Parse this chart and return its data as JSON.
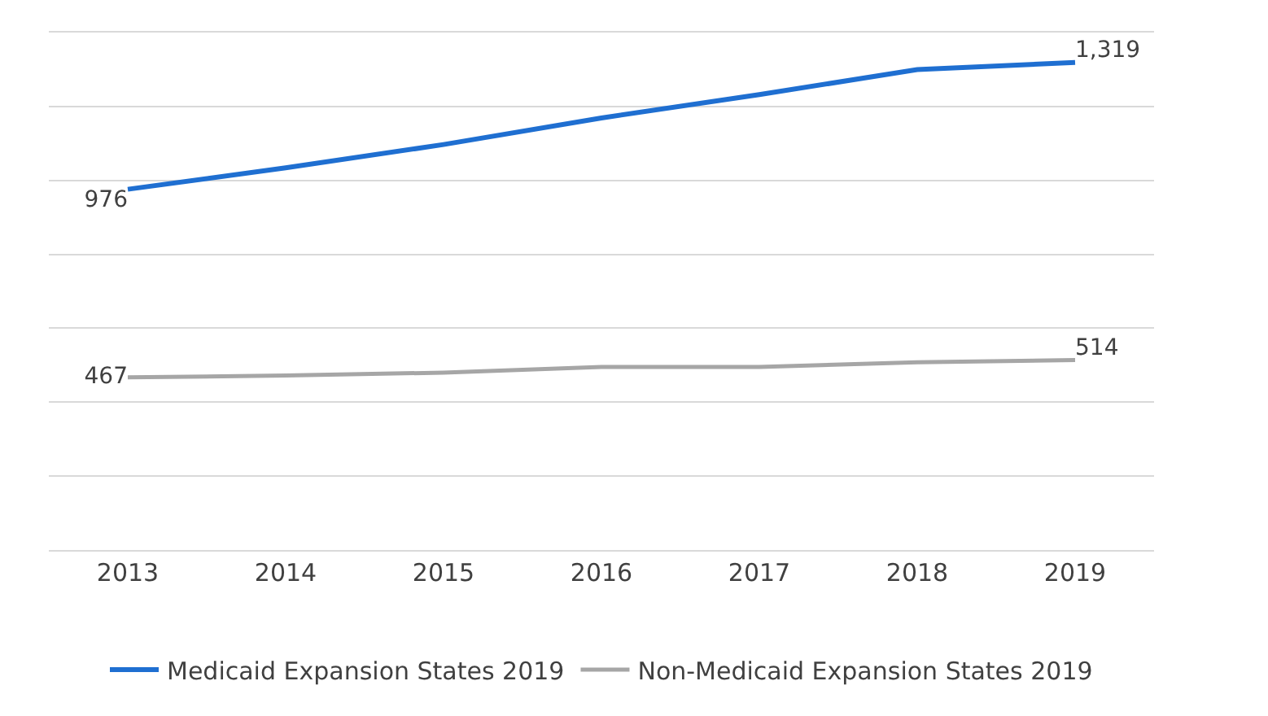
{
  "chart_data": {
    "type": "line",
    "categories": [
      "2013",
      "2014",
      "2015",
      "2016",
      "2017",
      "2018",
      "2019"
    ],
    "series": [
      {
        "name": "Medicaid Expansion States 2019",
        "color": "#1f6fd1",
        "values": [
          976,
          1034,
          1097,
          1169,
          1232,
          1300,
          1319
        ],
        "value_labels": [
          "976",
          null,
          null,
          null,
          null,
          null,
          "1,319"
        ]
      },
      {
        "name": "Non-Medicaid Expansion States 2019",
        "color": "#a6a6a6",
        "values": [
          467,
          472,
          480,
          495,
          495,
          508,
          514
        ],
        "value_labels": [
          "467",
          null,
          null,
          null,
          null,
          null,
          "514"
        ]
      }
    ],
    "ylim": [
      0,
      1400
    ],
    "yticks": [
      {
        "value": 0,
        "label": null
      },
      {
        "value": 200,
        "label": null
      },
      {
        "value": 400,
        "label": null
      },
      {
        "value": 600,
        "label": null
      },
      {
        "value": 800,
        "label": null
      },
      {
        "value": 1000,
        "label": null
      },
      {
        "value": 1200,
        "label": null
      },
      {
        "value": 1400,
        "label": null
      }
    ],
    "tick_labels": "x",
    "grid": "y",
    "legend": "bottom",
    "marker": "none",
    "line_style": "solid"
  }
}
